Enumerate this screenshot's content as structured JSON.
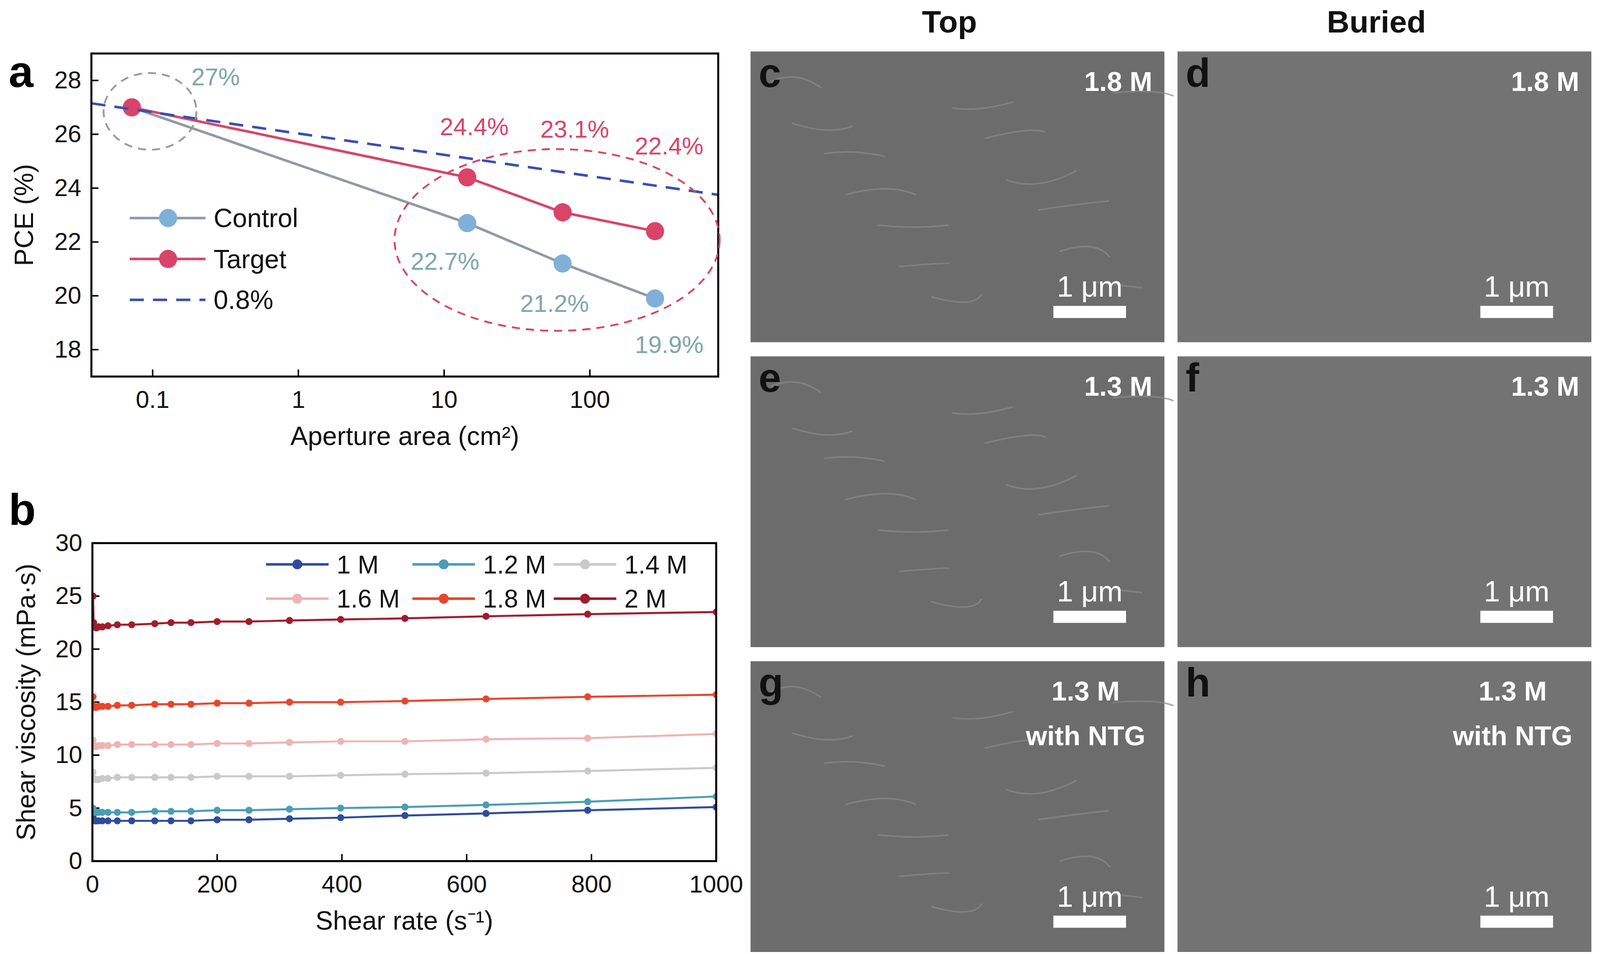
{
  "chart_data": [
    {
      "panel_label": "a",
      "type": "line",
      "x_label": "Aperture area (cm²)",
      "y_label": "PCE (%)",
      "log": "x",
      "xlim": [
        0.038,
        760
      ],
      "xticks": [
        0.1,
        1,
        10,
        100
      ],
      "ylim": [
        17,
        29
      ],
      "yticks": [
        18,
        20,
        22,
        24,
        26,
        28
      ],
      "legend": "left",
      "data_labels": true,
      "series": [
        {
          "name": "Control",
          "color": "#7fb0d8",
          "marker": "circle",
          "line_style": "solid",
          "x": [
            0.072,
            14.4,
            65,
            280
          ],
          "values": [
            27,
            22.7,
            21.2,
            19.9
          ],
          "value_labels": [
            "27%",
            "22.7%",
            "21.2%",
            "19.9%"
          ]
        },
        {
          "name": "Target",
          "color": "#d94468",
          "marker": "circle",
          "line_style": "solid",
          "x": [
            0.072,
            14.4,
            65,
            280
          ],
          "values": [
            27,
            24.4,
            23.1,
            22.4
          ],
          "value_labels": [
            null,
            "24.4%",
            "23.1%",
            "22.4%"
          ]
        },
        {
          "name": "0.8%",
          "color": "#3a4fb0",
          "marker": "none",
          "line_style": "dashed",
          "x": [
            0.038,
            760
          ],
          "values": [
            27.15,
            23.75
          ]
        }
      ]
    },
    {
      "panel_label": "b",
      "type": "line",
      "x_label": "Shear rate (s⁻¹)",
      "y_label": "Shear viscosity (mPa·s)",
      "xlim": [
        0,
        1000
      ],
      "xticks": [
        0,
        200,
        400,
        600,
        800,
        1000
      ],
      "ylim": [
        0,
        30
      ],
      "yticks": [
        0,
        5,
        10,
        15,
        20,
        25,
        30
      ],
      "legend": "top",
      "x": [
        1,
        2,
        4,
        6.3,
        10,
        16,
        25,
        40,
        63,
        100,
        126,
        158,
        200,
        251,
        316,
        398,
        501,
        631,
        794,
        1000
      ],
      "series": [
        {
          "name": "1 M",
          "color": "#2f4b9c",
          "marker": "circle",
          "line_style": "solid",
          "values": [
            4.2,
            3.9,
            3.8,
            3.8,
            3.8,
            3.8,
            3.8,
            3.8,
            3.8,
            3.8,
            3.8,
            3.8,
            3.9,
            3.9,
            4.0,
            4.1,
            4.3,
            4.5,
            4.8,
            5.1
          ]
        },
        {
          "name": "1.2 M",
          "color": "#4a9db3",
          "marker": "circle",
          "line_style": "solid",
          "values": [
            5.0,
            4.7,
            4.6,
            4.6,
            4.6,
            4.6,
            4.6,
            4.6,
            4.6,
            4.7,
            4.7,
            4.7,
            4.8,
            4.8,
            4.9,
            5.0,
            5.1,
            5.3,
            5.6,
            6.1
          ]
        },
        {
          "name": "1.4 M",
          "color": "#c9c9c9",
          "marker": "circle",
          "line_style": "solid",
          "values": [
            8.4,
            7.8,
            7.7,
            7.7,
            7.7,
            7.8,
            7.8,
            7.9,
            7.9,
            7.9,
            7.9,
            7.9,
            8.0,
            8.0,
            8.0,
            8.1,
            8.2,
            8.3,
            8.5,
            8.8
          ]
        },
        {
          "name": "1.6 M",
          "color": "#efb3b3",
          "marker": "circle",
          "line_style": "solid",
          "values": [
            11.4,
            10.9,
            10.8,
            10.8,
            10.9,
            10.9,
            10.9,
            11.0,
            11.0,
            11.0,
            11.0,
            11.0,
            11.1,
            11.1,
            11.2,
            11.3,
            11.3,
            11.5,
            11.6,
            12.0
          ]
        },
        {
          "name": "1.8 M",
          "color": "#e8452c",
          "marker": "circle",
          "line_style": "solid",
          "values": [
            15.5,
            14.6,
            14.5,
            14.5,
            14.6,
            14.6,
            14.6,
            14.7,
            14.7,
            14.8,
            14.8,
            14.8,
            14.9,
            14.9,
            15.0,
            15.0,
            15.1,
            15.3,
            15.5,
            15.7
          ]
        },
        {
          "name": "2 M",
          "color": "#a11c2c",
          "marker": "circle",
          "line_style": "solid",
          "values": [
            25.0,
            22.5,
            22.1,
            22.0,
            22.1,
            22.1,
            22.2,
            22.3,
            22.3,
            22.4,
            22.5,
            22.5,
            22.6,
            22.6,
            22.7,
            22.8,
            22.9,
            23.1,
            23.3,
            23.5
          ]
        }
      ]
    }
  ],
  "images": {
    "column_titles": [
      "Top",
      "Buried"
    ],
    "panels": [
      {
        "letter": "c",
        "label": [
          "1.8 M"
        ],
        "scale_bar": "1 μm"
      },
      {
        "letter": "d",
        "label": [
          "1.8 M"
        ],
        "scale_bar": "1 μm"
      },
      {
        "letter": "e",
        "label": [
          "1.3 M"
        ],
        "scale_bar": "1 μm"
      },
      {
        "letter": "f",
        "label": [
          "1.3 M"
        ],
        "scale_bar": "1 μm"
      },
      {
        "letter": "g",
        "label": [
          "1.3 M",
          "with NTG"
        ],
        "scale_bar": "1 μm"
      },
      {
        "letter": "h",
        "label": [
          "1.3 M",
          "with NTG"
        ],
        "scale_bar": "1 μm"
      }
    ]
  }
}
